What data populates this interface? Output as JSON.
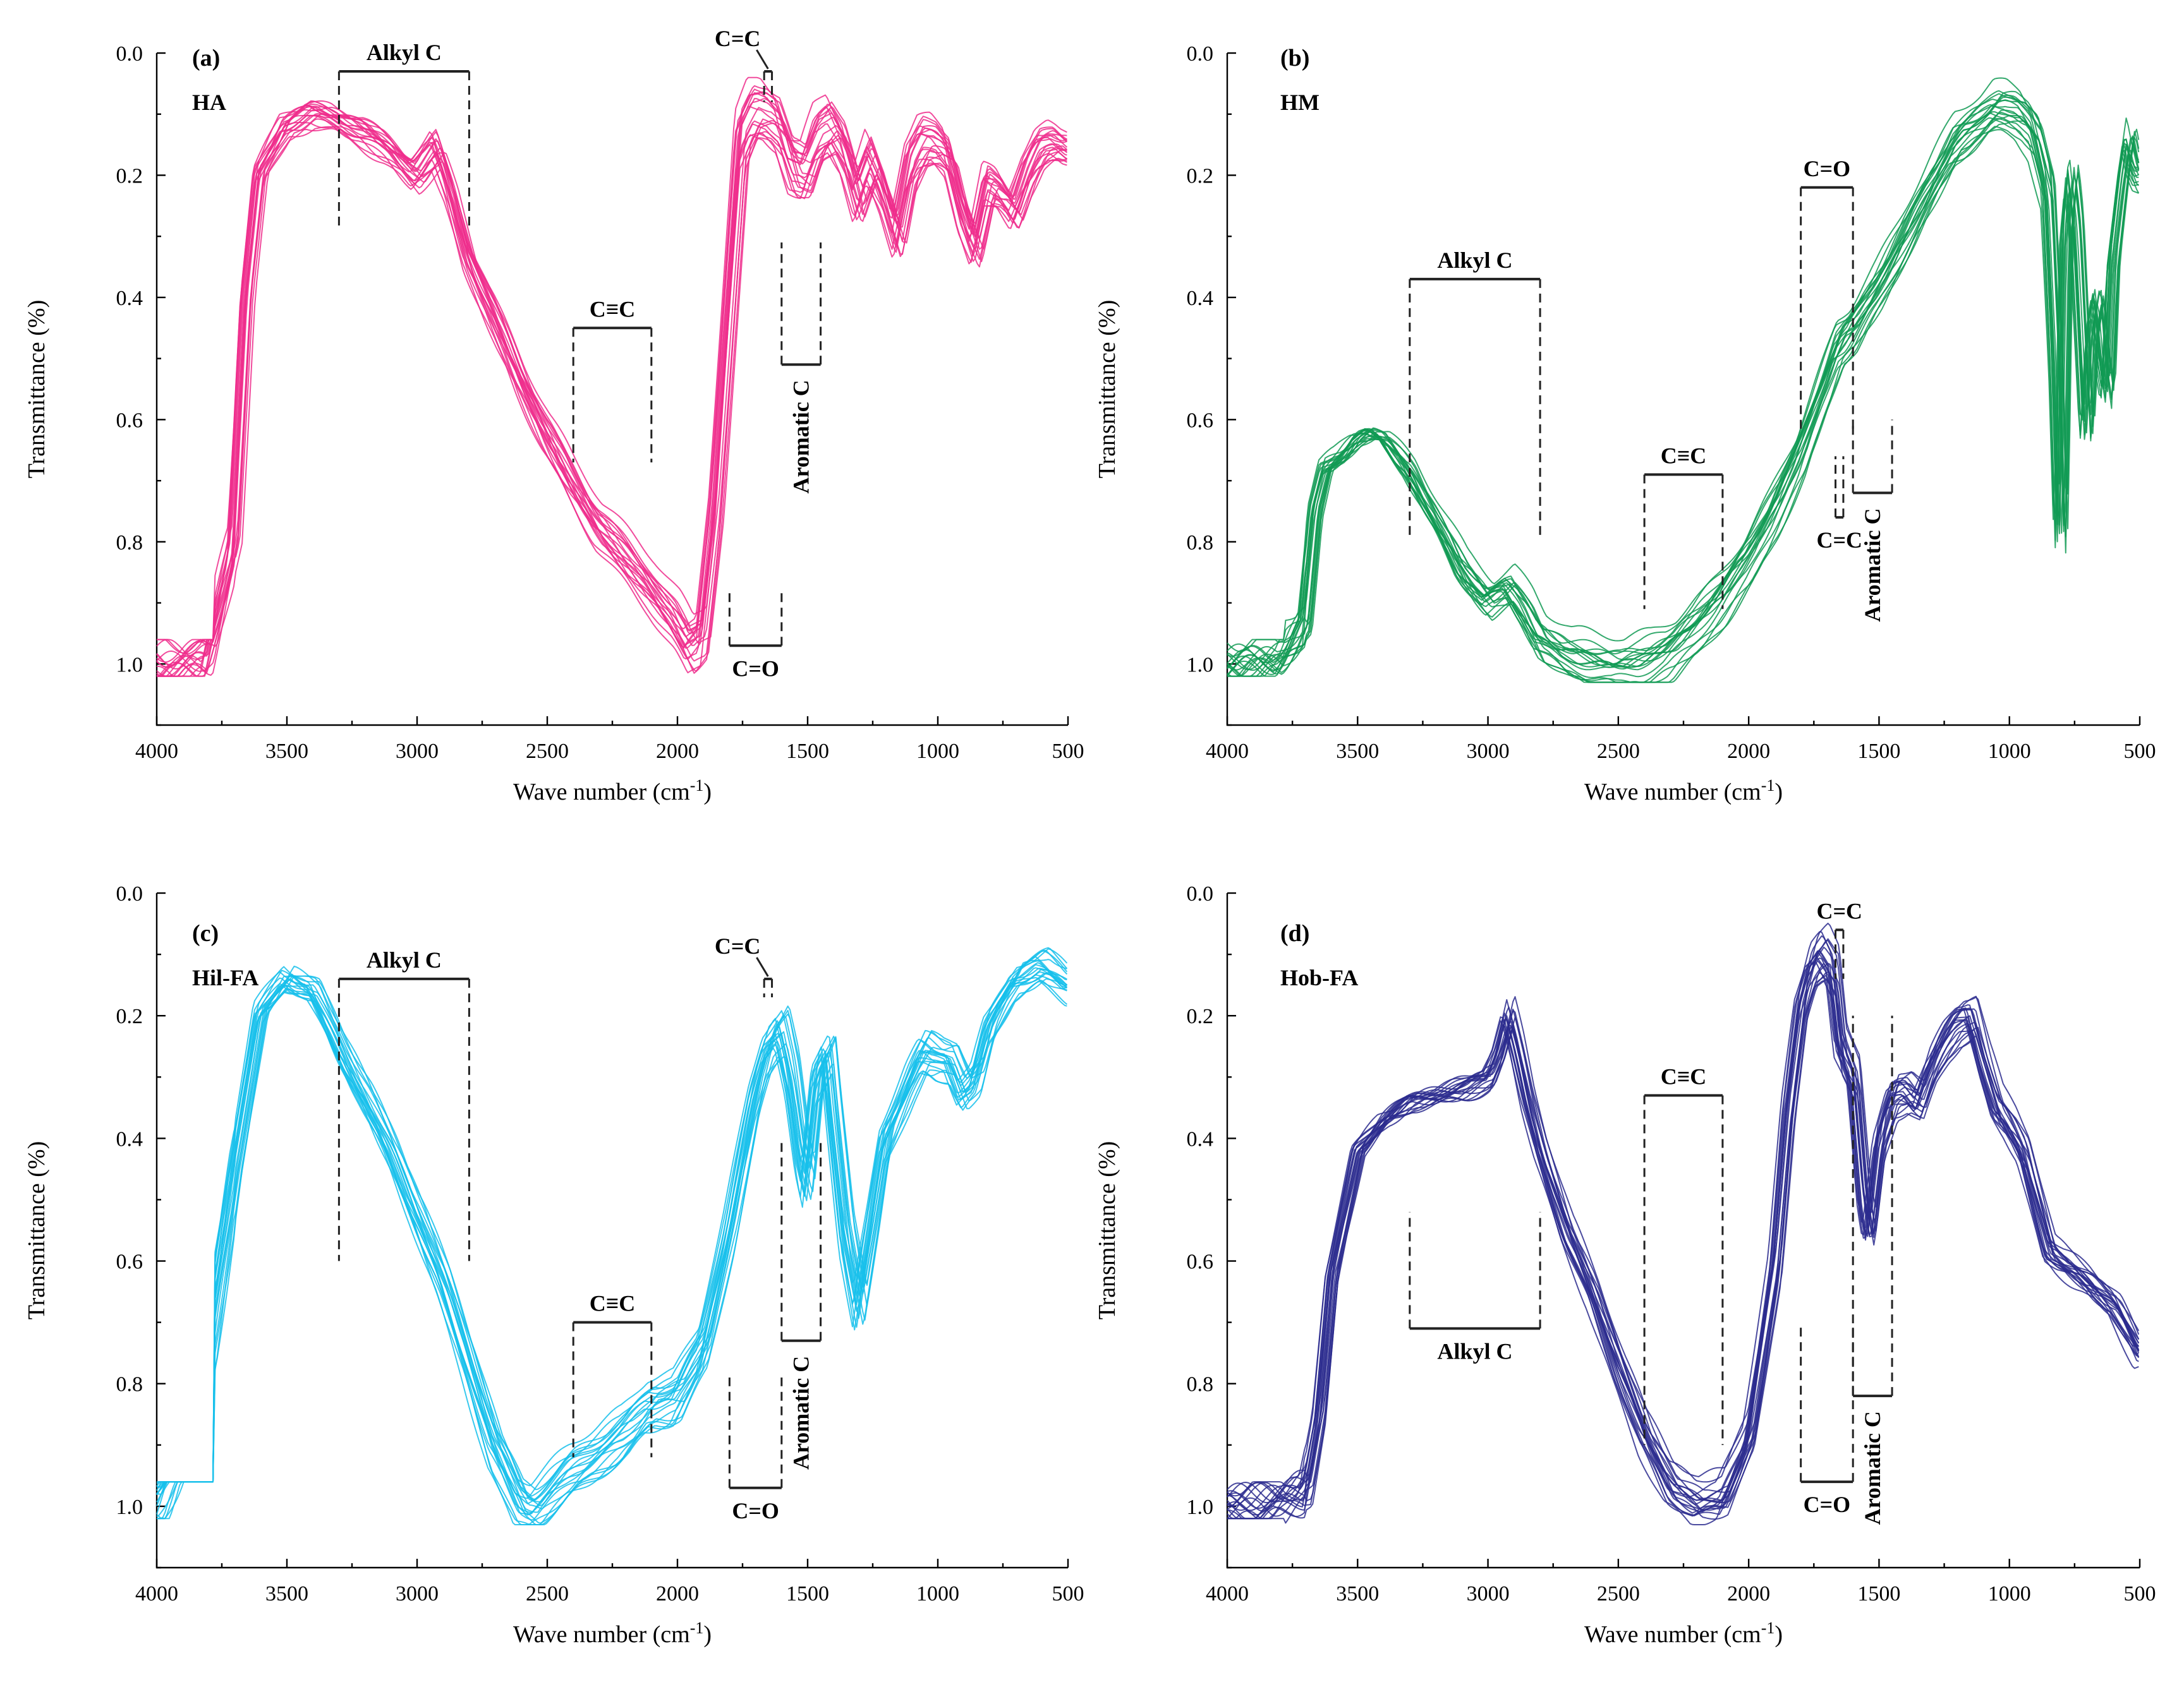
{
  "figure": {
    "description_type": "FTIR spectra, four panels",
    "shared_axes": {
      "xlabel": "Wave number (cm-1)",
      "xlabel_main": "Wave number (cm",
      "xlabel_sup": "-1",
      "xlabel_end": ")",
      "ylabel": "Transmittance (%)",
      "xlim": [
        4000,
        500
      ],
      "ylim": [
        0.0,
        1.1
      ],
      "xticks": [
        4000,
        3500,
        3000,
        2500,
        2000,
        1500,
        1000,
        500
      ],
      "xtick_labels": [
        "4000",
        "3500",
        "3000",
        "2500",
        "2000",
        "1500",
        "1000",
        "500"
      ],
      "yticks": [
        0.0,
        0.2,
        0.4,
        0.6,
        0.8,
        1.0
      ],
      "ytick_labels": [
        "0.0",
        "0.2",
        "0.4",
        "0.6",
        "0.8",
        "1.0"
      ]
    }
  },
  "chart_data": [
    {
      "type": "line",
      "panel": "(a)",
      "sample": "HA",
      "color": "#ee2d8c",
      "xlabel": "Wave number (cm-1)",
      "ylabel": "Transmittance (%)",
      "xlim": [
        4000,
        500
      ],
      "ylim": [
        0.0,
        1.1
      ],
      "n_series": 20,
      "base_series": {
        "x": [
          4000,
          3800,
          3700,
          3650,
          3600,
          3500,
          3400,
          3300,
          3200,
          3100,
          3000,
          2920,
          2870,
          2800,
          2700,
          2600,
          2500,
          2400,
          2300,
          2200,
          2100,
          2000,
          1950,
          1900,
          1850,
          1800,
          1750,
          1700,
          1650,
          1600,
          1550,
          1500,
          1450,
          1400,
          1350,
          1300,
          1250,
          1200,
          1150,
          1100,
          1050,
          1000,
          950,
          900,
          850,
          800,
          750,
          700,
          650,
          600,
          550,
          500
        ],
        "y": [
          1.0,
          0.99,
          0.8,
          0.4,
          0.2,
          0.12,
          0.1,
          0.11,
          0.13,
          0.16,
          0.2,
          0.16,
          0.22,
          0.33,
          0.43,
          0.53,
          0.62,
          0.7,
          0.77,
          0.82,
          0.87,
          0.93,
          0.97,
          0.95,
          0.75,
          0.45,
          0.15,
          0.1,
          0.1,
          0.12,
          0.19,
          0.2,
          0.14,
          0.12,
          0.16,
          0.24,
          0.18,
          0.23,
          0.3,
          0.19,
          0.15,
          0.15,
          0.17,
          0.26,
          0.32,
          0.22,
          0.23,
          0.26,
          0.2,
          0.16,
          0.15,
          0.16
        ]
      },
      "bands": [
        {
          "label": "Alkyl C",
          "from": 3300,
          "to": 2800,
          "y": 0.03,
          "direction": "down",
          "drop": 0.26,
          "label_pos": "above"
        },
        {
          "label": "C=C",
          "from": 1667,
          "to": 1637,
          "y": 0.03,
          "direction": "down",
          "drop": 0.05,
          "label_pos": "above-left"
        },
        {
          "label": "C≡C",
          "from": 2400,
          "to": 2100,
          "y": 0.45,
          "direction": "down",
          "drop": 0.22,
          "label_pos": "above"
        },
        {
          "label": "C=O",
          "from": 1800,
          "to": 1600,
          "y": 0.97,
          "direction": "up",
          "drop": 0.09,
          "label_pos": "below"
        },
        {
          "label": "Aromatic C",
          "from": 1600,
          "to": 1450,
          "y": 0.51,
          "direction": "up",
          "drop": 0.2,
          "label_pos": "rotated-below"
        }
      ]
    },
    {
      "type": "line",
      "panel": "(b)",
      "sample": "HM",
      "color": "#109a54",
      "xlabel": "Wave number (cm-1)",
      "ylabel": "Transmittance (%)",
      "xlim": [
        4000,
        500
      ],
      "ylim": [
        0.0,
        1.1
      ],
      "n_series": 20,
      "base_series": {
        "x": [
          4000,
          3800,
          3700,
          3660,
          3620,
          3560,
          3500,
          3450,
          3400,
          3300,
          3200,
          3100,
          3000,
          2920,
          2850,
          2800,
          2700,
          2600,
          2500,
          2400,
          2300,
          2200,
          2100,
          2000,
          1900,
          1800,
          1700,
          1650,
          1600,
          1500,
          1400,
          1300,
          1200,
          1100,
          1050,
          1000,
          950,
          900,
          850,
          820,
          800,
          780,
          760,
          740,
          700,
          680,
          660,
          640,
          620,
          600,
          560,
          540,
          520,
          500
        ],
        "y": [
          1.0,
          0.99,
          0.93,
          0.75,
          0.68,
          0.66,
          0.63,
          0.62,
          0.63,
          0.68,
          0.76,
          0.84,
          0.89,
          0.87,
          0.91,
          0.95,
          0.98,
          0.99,
          1.0,
          0.99,
          0.97,
          0.93,
          0.88,
          0.82,
          0.74,
          0.65,
          0.53,
          0.47,
          0.45,
          0.38,
          0.3,
          0.22,
          0.14,
          0.11,
          0.09,
          0.09,
          0.1,
          0.13,
          0.22,
          0.5,
          0.8,
          0.3,
          0.2,
          0.28,
          0.62,
          0.45,
          0.4,
          0.5,
          0.56,
          0.35,
          0.2,
          0.14,
          0.18,
          0.2
        ]
      },
      "bands": [
        {
          "label": "Alkyl C",
          "from": 3300,
          "to": 2800,
          "y": 0.37,
          "direction": "down",
          "drop": 0.42,
          "label_pos": "above"
        },
        {
          "label": "C=O",
          "from": 1800,
          "to": 1600,
          "y": 0.22,
          "direction": "down",
          "drop": 0.4,
          "label_pos": "above"
        },
        {
          "label": "C≡C",
          "from": 2400,
          "to": 2100,
          "y": 0.69,
          "direction": "down",
          "drop": 0.22,
          "label_pos": "above"
        },
        {
          "label": "C=C",
          "from": 1667,
          "to": 1637,
          "y": 0.76,
          "direction": "up",
          "drop": 0.1,
          "label_pos": "below"
        },
        {
          "label": "Aromatic C",
          "from": 1600,
          "to": 1450,
          "y": 0.72,
          "direction": "up",
          "drop": 0.12,
          "label_pos": "rotated-below"
        }
      ]
    },
    {
      "type": "line",
      "panel": "(c)",
      "sample": "Hil-FA",
      "color": "#16c0eb",
      "xlabel": "Wave number (cm-1)",
      "ylabel": "Transmittance (%)",
      "xlim": [
        4000,
        500
      ],
      "ylim": [
        0.0,
        1.1
      ],
      "n_series": 20,
      "base_series": {
        "x": [
          4000,
          3900,
          3800,
          3700,
          3600,
          3500,
          3400,
          3300,
          3200,
          3100,
          3000,
          2900,
          2800,
          2700,
          2600,
          2550,
          2500,
          2400,
          2300,
          2200,
          2100,
          2000,
          1900,
          1800,
          1700,
          1650,
          1600,
          1560,
          1520,
          1500,
          1460,
          1420,
          1400,
          1350,
          1300,
          1250,
          1200,
          1100,
          1050,
          1000,
          950,
          900,
          850,
          800,
          700,
          600,
          500
        ],
        "y": [
          1.0,
          0.9,
          0.75,
          0.45,
          0.2,
          0.14,
          0.16,
          0.25,
          0.33,
          0.42,
          0.52,
          0.63,
          0.76,
          0.9,
          0.99,
          1.0,
          0.98,
          0.94,
          0.91,
          0.88,
          0.83,
          0.82,
          0.74,
          0.55,
          0.33,
          0.25,
          0.22,
          0.3,
          0.43,
          0.47,
          0.3,
          0.26,
          0.35,
          0.55,
          0.67,
          0.54,
          0.4,
          0.3,
          0.26,
          0.27,
          0.27,
          0.32,
          0.3,
          0.22,
          0.14,
          0.12,
          0.15
        ]
      },
      "bands": [
        {
          "label": "Alkyl C",
          "from": 3300,
          "to": 2800,
          "y": 0.14,
          "direction": "down",
          "drop": 0.46,
          "label_pos": "above"
        },
        {
          "label": "C=C",
          "from": 1667,
          "to": 1637,
          "y": 0.14,
          "direction": "down",
          "drop": 0.03,
          "label_pos": "above-left"
        },
        {
          "label": "C≡C",
          "from": 2400,
          "to": 2100,
          "y": 0.7,
          "direction": "down",
          "drop": 0.22,
          "label_pos": "above"
        },
        {
          "label": "C=O",
          "from": 1800,
          "to": 1600,
          "y": 0.97,
          "direction": "up",
          "drop": 0.18,
          "label_pos": "below"
        },
        {
          "label": "Aromatic C",
          "from": 1600,
          "to": 1450,
          "y": 0.73,
          "direction": "up",
          "drop": 0.33,
          "label_pos": "rotated-below"
        }
      ]
    },
    {
      "type": "line",
      "panel": "(d)",
      "sample": "Hob-FA",
      "color": "#2b2b8e",
      "xlabel": "Wave number (cm-1)",
      "ylabel": "Transmittance (%)",
      "xlim": [
        4000,
        500
      ],
      "ylim": [
        0.0,
        1.1
      ],
      "n_series": 20,
      "base_series": {
        "x": [
          4000,
          3800,
          3700,
          3650,
          3600,
          3500,
          3400,
          3300,
          3200,
          3100,
          3000,
          2960,
          2925,
          2890,
          2850,
          2800,
          2700,
          2600,
          2500,
          2400,
          2300,
          2200,
          2100,
          2000,
          1900,
          1850,
          1800,
          1760,
          1720,
          1680,
          1650,
          1600,
          1560,
          1540,
          1500,
          1450,
          1400,
          1350,
          1300,
          1250,
          1200,
          1150,
          1100,
          1050,
          1000,
          950,
          900,
          850,
          800,
          700,
          600,
          500
        ],
        "y": [
          1.0,
          0.99,
          0.97,
          0.85,
          0.62,
          0.42,
          0.37,
          0.34,
          0.33,
          0.32,
          0.3,
          0.26,
          0.2,
          0.26,
          0.34,
          0.42,
          0.55,
          0.65,
          0.77,
          0.88,
          0.96,
          0.99,
          0.98,
          0.88,
          0.6,
          0.35,
          0.18,
          0.12,
          0.1,
          0.13,
          0.25,
          0.3,
          0.5,
          0.55,
          0.4,
          0.33,
          0.32,
          0.34,
          0.28,
          0.24,
          0.21,
          0.2,
          0.28,
          0.35,
          0.38,
          0.42,
          0.5,
          0.58,
          0.6,
          0.63,
          0.67,
          0.75
        ]
      },
      "bands": [
        {
          "label": "C=C",
          "from": 1667,
          "to": 1637,
          "y": 0.06,
          "direction": "down",
          "drop": 0.08,
          "label_pos": "above"
        },
        {
          "label": "C≡C",
          "from": 2400,
          "to": 2100,
          "y": 0.33,
          "direction": "down",
          "drop": 0.57,
          "label_pos": "above"
        },
        {
          "label": "Alkyl C",
          "from": 3300,
          "to": 2800,
          "y": 0.71,
          "direction": "up",
          "drop": 0.19,
          "label_pos": "below"
        },
        {
          "label": "C=O",
          "from": 1800,
          "to": 1600,
          "y": 0.96,
          "direction": "up",
          "drop": 0.26,
          "label_pos": "below"
        },
        {
          "label": "Aromatic C",
          "from": 1600,
          "to": 1450,
          "y": 0.82,
          "direction": "up",
          "drop": 0.62,
          "label_pos": "rotated-below"
        }
      ]
    }
  ]
}
